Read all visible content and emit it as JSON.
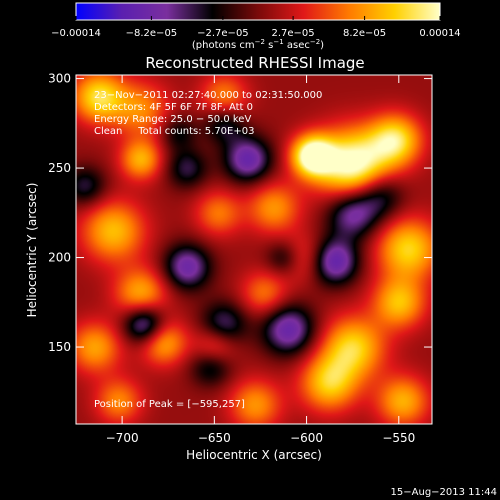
{
  "chart_data": {
    "type": "heatmap",
    "title": "Reconstructed RHESSI Image",
    "xlabel": "Heliocentric X (arcsec)",
    "ylabel": "Heliocentric Y (arcsec)",
    "xlim": [
      -725,
      -532
    ],
    "ylim": [
      107,
      302
    ],
    "xticks": [
      {
        "value": -700,
        "label": "−700"
      },
      {
        "value": -650,
        "label": "−650"
      },
      {
        "value": -600,
        "label": "−600"
      },
      {
        "value": -550,
        "label": "−550"
      }
    ],
    "yticks": [
      {
        "value": 150,
        "label": "150"
      },
      {
        "value": 200,
        "label": "200"
      },
      {
        "value": 250,
        "label": "250"
      },
      {
        "value": 300,
        "label": "300"
      }
    ],
    "colorbar": {
      "range": [
        -0.00014,
        0.00014
      ],
      "ticks": [
        {
          "value": -0.00014,
          "label": "−0.00014"
        },
        {
          "value": -8.2e-05,
          "label": "−8.2e−05"
        },
        {
          "value": -2.7e-05,
          "label": "−2.7e−05"
        },
        {
          "value": 2.7e-05,
          "label": "2.7e−05"
        },
        {
          "value": 8.2e-05,
          "label": "8.2e−05"
        },
        {
          "value": 0.00014,
          "label": "0.00014"
        }
      ],
      "unit_parts": [
        "(photons cm",
        "−2",
        " s",
        "−1",
        " asec",
        "−2",
        ")"
      ],
      "colors": [
        "#0000ff",
        "#5a1fb0",
        "#7a2f9e",
        "#000000",
        "#7a0a0a",
        "#e01818",
        "#ff7a00",
        "#ffd000",
        "#ffffc8"
      ]
    },
    "annotations": [
      "23−Nov−2011 02:27:40.000 to 02:31:50.000",
      "Detectors: 4F 5F 6F 7F 8F, Att 0",
      "Energy Range: 25.0 − 50.0 keV",
      "Clean     Total counts: 5.70E+03"
    ],
    "peak_label": "Position of Peak = [−595,257]",
    "peak": {
      "x": -595,
      "y": 257
    },
    "sources": [
      {
        "x": -575,
        "y": 252,
        "amp": 1.2,
        "sigma": 14
      },
      {
        "x": -597,
        "y": 257,
        "amp": 1.25,
        "sigma": 8
      },
      {
        "x": -552,
        "y": 266,
        "amp": 0.9,
        "sigma": 10
      },
      {
        "x": -545,
        "y": 205,
        "amp": 0.85,
        "sigma": 12
      },
      {
        "x": -550,
        "y": 175,
        "amp": 0.75,
        "sigma": 10
      },
      {
        "x": -575,
        "y": 150,
        "amp": 0.85,
        "sigma": 12
      },
      {
        "x": -588,
        "y": 130,
        "amp": 0.8,
        "sigma": 11
      },
      {
        "x": -548,
        "y": 120,
        "amp": 0.7,
        "sigma": 10
      },
      {
        "x": -705,
        "y": 215,
        "amp": 0.75,
        "sigma": 12
      },
      {
        "x": -690,
        "y": 180,
        "amp": 0.7,
        "sigma": 10
      },
      {
        "x": -678,
        "y": 153,
        "amp": 0.7,
        "sigma": 9
      },
      {
        "x": -713,
        "y": 290,
        "amp": 0.9,
        "sigma": 10
      },
      {
        "x": -690,
        "y": 283,
        "amp": 0.55,
        "sigma": 11
      },
      {
        "x": -690,
        "y": 255,
        "amp": 0.7,
        "sigma": 8
      },
      {
        "x": -645,
        "y": 290,
        "amp": 0.55,
        "sigma": 9
      },
      {
        "x": -618,
        "y": 228,
        "amp": 0.6,
        "sigma": 10
      },
      {
        "x": -648,
        "y": 225,
        "amp": 0.5,
        "sigma": 9
      },
      {
        "x": -623,
        "y": 180,
        "amp": 0.5,
        "sigma": 9
      },
      {
        "x": -715,
        "y": 150,
        "amp": 0.65,
        "sigma": 10
      },
      {
        "x": -702,
        "y": 120,
        "amp": 0.55,
        "sigma": 9
      },
      {
        "x": -650,
        "y": 150,
        "amp": 0.55,
        "sigma": 8
      },
      {
        "x": -628,
        "y": 118,
        "amp": 0.6,
        "sigma": 10
      },
      {
        "x": -603,
        "y": 200,
        "amp": 0.45,
        "sigma": 9
      },
      {
        "x": -575,
        "y": 225,
        "amp": -0.8,
        "sigma": 10
      },
      {
        "x": -560,
        "y": 235,
        "amp": -0.55,
        "sigma": 9
      },
      {
        "x": -632,
        "y": 255,
        "amp": -0.85,
        "sigma": 9
      },
      {
        "x": -645,
        "y": 275,
        "amp": -0.5,
        "sigma": 8
      },
      {
        "x": -665,
        "y": 195,
        "amp": -0.8,
        "sigma": 9
      },
      {
        "x": -688,
        "y": 163,
        "amp": -0.9,
        "sigma": 8
      },
      {
        "x": -645,
        "y": 163,
        "amp": -0.6,
        "sigma": 9
      },
      {
        "x": -652,
        "y": 140,
        "amp": -0.55,
        "sigma": 8
      },
      {
        "x": -610,
        "y": 160,
        "amp": -0.85,
        "sigma": 10
      },
      {
        "x": -585,
        "y": 198,
        "amp": -0.9,
        "sigma": 9
      },
      {
        "x": -612,
        "y": 200,
        "amp": -0.5,
        "sigma": 7
      },
      {
        "x": -720,
        "y": 240,
        "amp": -0.5,
        "sigma": 8
      },
      {
        "x": -665,
        "y": 250,
        "amp": -0.5,
        "sigma": 8
      },
      {
        "x": -670,
        "y": 270,
        "amp": -0.4,
        "sigma": 7
      }
    ]
  },
  "footer": {
    "timestamp": "15−Aug−2013 11:44"
  }
}
